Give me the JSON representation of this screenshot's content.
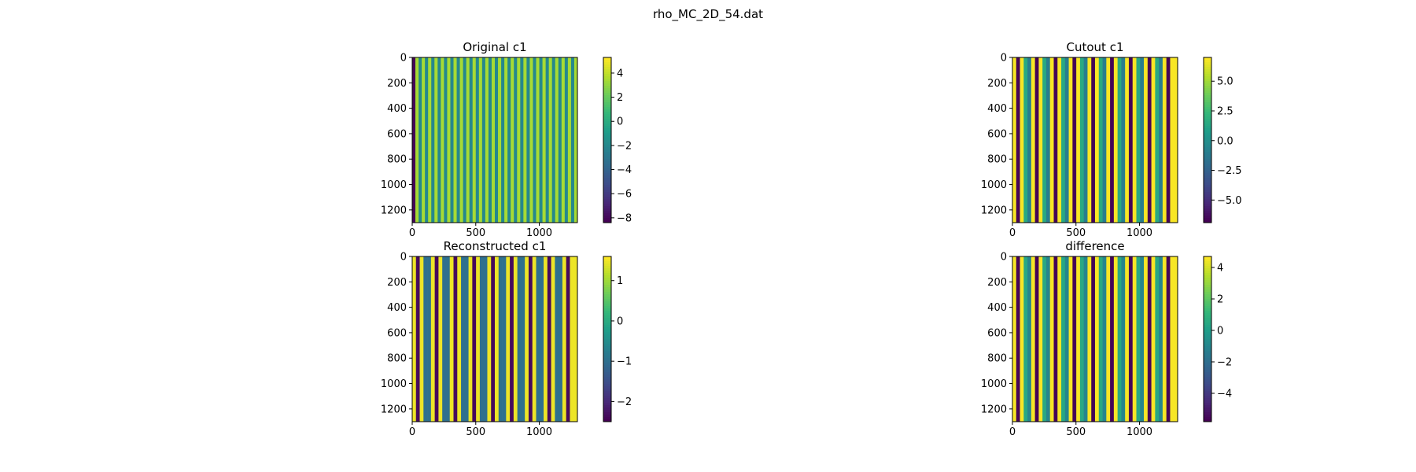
{
  "figure": {
    "title": "rho_MC_2D_54.dat"
  },
  "chart_data": [
    {
      "type": "heatmap",
      "title": "Original c1",
      "colormap": "viridis",
      "x_ticks": [
        0,
        500,
        1000
      ],
      "y_ticks": [
        0,
        200,
        400,
        600,
        800,
        1000,
        1200
      ],
      "xlim": [
        0,
        1300
      ],
      "ylim": [
        1300,
        0
      ],
      "colorbar": {
        "ticks": [
          4,
          2,
          0,
          -2,
          -4,
          -6,
          -8
        ],
        "range": [
          -8.4,
          5.3
        ]
      },
      "column_pattern": [
        -8.3,
        3.5,
        -2,
        3.5,
        -2,
        3.5,
        -2,
        3.5,
        -2,
        3.5,
        -2,
        3.5,
        -2,
        3.5,
        -2,
        3.5,
        -2,
        3.5,
        -2,
        3.5,
        -2,
        3.5,
        -2,
        3.5,
        -2,
        3.5,
        -2,
        3.5,
        -2,
        3.5,
        -2,
        3.5,
        -2,
        3.5,
        -2,
        3.5,
        -2,
        3.5,
        -2,
        3.5,
        -2,
        3.5,
        -2,
        3.5,
        -2,
        3.5,
        -2,
        3.5,
        -2,
        3.5,
        -2,
        3.5
      ]
    },
    {
      "type": "heatmap",
      "title": "Cutout c1",
      "colormap": "viridis",
      "x_ticks": [
        0,
        500,
        1000
      ],
      "y_ticks": [
        0,
        200,
        400,
        600,
        800,
        1000,
        1200
      ],
      "xlim": [
        0,
        1300
      ],
      "ylim": [
        1300,
        0
      ],
      "colorbar": {
        "ticks": [
          5.0,
          2.5,
          0.0,
          -2.5,
          -5.0
        ],
        "range": [
          -6.9,
          7.0
        ]
      },
      "column_pattern": [
        6.9,
        -6.8,
        6.9,
        1.5,
        -1,
        6.9,
        -6.8,
        6.9,
        1.5,
        -1,
        6.9,
        -6.8,
        6.9,
        1.5,
        -1,
        6.9,
        -6.8,
        6.9,
        1.5,
        -1,
        6.9,
        -6.8,
        6.9,
        1.5,
        -1,
        6.9,
        -6.8,
        6.9,
        1.5,
        -1,
        6.9,
        -6.8,
        6.9,
        1.5,
        -1,
        6.9,
        -6.8,
        6.9,
        1.5,
        -1,
        6.9,
        -6.8,
        6.9,
        6.9
      ]
    },
    {
      "type": "heatmap",
      "title": "Reconstructed c1",
      "colormap": "viridis",
      "x_ticks": [
        0,
        500,
        1000
      ],
      "y_ticks": [
        0,
        200,
        400,
        600,
        800,
        1000,
        1200
      ],
      "xlim": [
        0,
        1300
      ],
      "ylim": [
        1300,
        0
      ],
      "colorbar": {
        "ticks": [
          1,
          0,
          -1,
          -2
        ],
        "range": [
          -2.5,
          1.6
        ]
      },
      "column_pattern": [
        1.5,
        -2.4,
        1.5,
        -1,
        -1,
        1.5,
        -2.4,
        1.5,
        -1,
        -1,
        1.5,
        -2.4,
        1.5,
        -1,
        -1,
        1.5,
        -2.4,
        1.5,
        -1,
        -1,
        1.5,
        -2.4,
        1.5,
        -1,
        -1,
        1.5,
        -2.4,
        1.5,
        -1,
        -1,
        1.5,
        -2.4,
        1.5,
        -1,
        -1,
        1.5,
        -2.4,
        1.5,
        -1,
        -1,
        1.5,
        -2.4,
        1.5,
        1.5
      ]
    },
    {
      "type": "heatmap",
      "title": "difference",
      "colormap": "viridis",
      "x_ticks": [
        0,
        500,
        1000
      ],
      "y_ticks": [
        0,
        200,
        400,
        600,
        800,
        1000,
        1200
      ],
      "xlim": [
        0,
        1300
      ],
      "ylim": [
        1300,
        0
      ],
      "colorbar": {
        "ticks": [
          4,
          2,
          0,
          -2,
          -4
        ],
        "range": [
          -5.8,
          4.7
        ]
      },
      "column_pattern": [
        4.6,
        -5.7,
        4.6,
        0.5,
        -1,
        4.6,
        -5.7,
        4.6,
        0.5,
        -1,
        4.6,
        -5.7,
        4.6,
        0.5,
        -1,
        4.6,
        -5.7,
        4.6,
        0.5,
        -1,
        4.6,
        -5.7,
        4.6,
        0.5,
        -1,
        4.6,
        -5.7,
        4.6,
        0.5,
        -1,
        4.6,
        -5.7,
        4.6,
        0.5,
        -1,
        4.6,
        -5.7,
        4.6,
        0.5,
        -1,
        4.6,
        -5.7,
        4.6,
        4.6
      ]
    }
  ]
}
